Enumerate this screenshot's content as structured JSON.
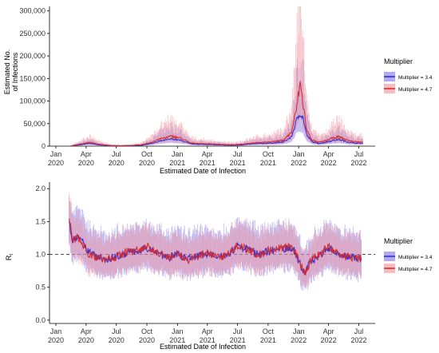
{
  "colors": {
    "series1": "#2b2bd9",
    "series2": "#d62728",
    "ribbon1": "#7b6ee6",
    "ribbon2": "#f0909a",
    "refline": "#333333"
  },
  "chart_data": [
    {
      "type": "line",
      "ylabel_lines": [
        "Estimated No.",
        "of Infections"
      ],
      "xlabel": "Estimated Date of Infection",
      "yticks": [
        0,
        50000,
        100000,
        150000,
        200000,
        250000,
        300000
      ],
      "ytick_labels": [
        "0",
        "50,000",
        "100,000",
        "150,000",
        "200,000",
        "250,000",
        "300,000"
      ],
      "ylim": [
        0,
        310000
      ],
      "xlim": [
        "2020-01-01",
        "2022-07-31"
      ],
      "xticks": [
        "2020-01",
        "2020-04",
        "2020-07",
        "2020-10",
        "2021-01",
        "2021-04",
        "2021-07",
        "2021-10",
        "2022-01",
        "2022-04",
        "2022-07"
      ],
      "xtick_labels": [
        [
          "Jan",
          "2020"
        ],
        [
          "Apr",
          "2020"
        ],
        [
          "Jul",
          "2020"
        ],
        [
          "Oct",
          "2020"
        ],
        [
          "Jan",
          "2021"
        ],
        [
          "Apr",
          "2021"
        ],
        [
          "Jul",
          "2021"
        ],
        [
          "Oct",
          "2021"
        ],
        [
          "Jan",
          "2022"
        ],
        [
          "Apr",
          "2022"
        ],
        [
          "Jul",
          "2022"
        ]
      ],
      "legend": {
        "title": "Multiplier",
        "position": "right"
      },
      "series": [
        {
          "name": "Multiplier = 3.4",
          "x": [
            "2020-02-15",
            "2020-03-15",
            "2020-04-10",
            "2020-05-15",
            "2020-06-15",
            "2020-07-15",
            "2020-08-15",
            "2020-09-15",
            "2020-10-15",
            "2020-11-15",
            "2020-12-15",
            "2021-01-10",
            "2021-02-10",
            "2021-03-15",
            "2021-04-15",
            "2021-05-15",
            "2021-06-15",
            "2021-07-15",
            "2021-08-15",
            "2021-09-15",
            "2021-10-15",
            "2021-11-15",
            "2021-12-10",
            "2021-12-25",
            "2022-01-05",
            "2022-01-15",
            "2022-01-25",
            "2022-02-10",
            "2022-03-01",
            "2022-03-20",
            "2022-04-10",
            "2022-05-01",
            "2022-05-25",
            "2022-06-15",
            "2022-07-15"
          ],
          "y": [
            500,
            3000,
            6000,
            2500,
            1000,
            700,
            1000,
            2000,
            6000,
            12000,
            16000,
            13000,
            5000,
            4000,
            3500,
            2500,
            2000,
            3000,
            5000,
            6000,
            7000,
            9000,
            20000,
            55000,
            75000,
            60000,
            25000,
            10000,
            6000,
            8000,
            12000,
            15000,
            10000,
            7000,
            6000
          ],
          "lower": [
            200,
            1500,
            3000,
            1200,
            500,
            350,
            500,
            1000,
            3000,
            6000,
            8000,
            6500,
            2500,
            2000,
            1700,
            1200,
            1000,
            1500,
            2500,
            3000,
            3500,
            4500,
            10000,
            30000,
            40000,
            30000,
            12000,
            5000,
            3000,
            4000,
            6000,
            7500,
            5000,
            3500,
            3000
          ],
          "upper": [
            1000,
            6000,
            12000,
            5000,
            2000,
            1400,
            2000,
            4000,
            12000,
            24000,
            32000,
            26000,
            10000,
            8000,
            7000,
            5000,
            4000,
            6000,
            10000,
            12000,
            14000,
            18000,
            40000,
            110000,
            150000,
            120000,
            50000,
            20000,
            12000,
            16000,
            24000,
            30000,
            20000,
            14000,
            12000
          ]
        },
        {
          "name": "Multiplier = 4.7",
          "x": [
            "2020-02-15",
            "2020-03-15",
            "2020-04-10",
            "2020-05-15",
            "2020-06-15",
            "2020-07-15",
            "2020-08-15",
            "2020-09-15",
            "2020-10-15",
            "2020-11-15",
            "2020-12-15",
            "2021-01-10",
            "2021-02-10",
            "2021-03-15",
            "2021-04-15",
            "2021-05-15",
            "2021-06-15",
            "2021-07-15",
            "2021-08-15",
            "2021-09-15",
            "2021-10-15",
            "2021-11-15",
            "2021-12-10",
            "2021-12-25",
            "2022-01-05",
            "2022-01-15",
            "2022-01-25",
            "2022-02-10",
            "2022-03-01",
            "2022-03-20",
            "2022-04-10",
            "2022-05-01",
            "2022-05-25",
            "2022-06-15",
            "2022-07-15"
          ],
          "y": [
            700,
            4500,
            8500,
            3500,
            1400,
            1000,
            1500,
            3000,
            9000,
            17000,
            22000,
            18000,
            7000,
            5500,
            5000,
            3500,
            3000,
            4500,
            7000,
            8500,
            10000,
            13000,
            30000,
            80000,
            140000,
            90000,
            35000,
            14000,
            8500,
            11000,
            17000,
            21000,
            14000,
            10000,
            8500
          ],
          "lower": [
            300,
            2200,
            4200,
            1700,
            700,
            500,
            700,
            1500,
            4500,
            8500,
            11000,
            9000,
            3500,
            2700,
            2500,
            1700,
            1500,
            2200,
            3500,
            4200,
            5000,
            6500,
            15000,
            45000,
            70000,
            45000,
            17000,
            7000,
            4200,
            5500,
            8500,
            10500,
            7000,
            5000,
            4200
          ],
          "upper": [
            1500,
            9000,
            17000,
            7000,
            2800,
            2000,
            3000,
            6000,
            18000,
            34000,
            44000,
            36000,
            14000,
            11000,
            10000,
            7000,
            6000,
            9000,
            14000,
            17000,
            20000,
            26000,
            60000,
            160000,
            260000,
            180000,
            70000,
            28000,
            17000,
            22000,
            34000,
            42000,
            28000,
            20000,
            17000
          ]
        }
      ]
    },
    {
      "type": "line",
      "ylabel": "R",
      "ylabel_sub": "t",
      "xlabel": "Estimated Date of Infection",
      "yticks": [
        0.0,
        0.5,
        1.0,
        1.5,
        2.0
      ],
      "ytick_labels": [
        "0.0",
        "0.5",
        "1.0",
        "1.5",
        "2.0"
      ],
      "ylim": [
        -0.05,
        2.1
      ],
      "reference_line": 1.0,
      "xlim": [
        "2020-01-01",
        "2022-07-31"
      ],
      "xticks": [
        "2020-01",
        "2020-04",
        "2020-07",
        "2020-10",
        "2021-01",
        "2021-04",
        "2021-07",
        "2021-10",
        "2022-01",
        "2022-04",
        "2022-07"
      ],
      "xtick_labels": [
        [
          "Jan",
          "2020"
        ],
        [
          "Apr",
          "2020"
        ],
        [
          "Jul",
          "2020"
        ],
        [
          "Oct",
          "2020"
        ],
        [
          "Jan",
          "2021"
        ],
        [
          "Apr",
          "2021"
        ],
        [
          "Jul",
          "2021"
        ],
        [
          "Oct",
          "2021"
        ],
        [
          "Jan",
          "2022"
        ],
        [
          "Apr",
          "2022"
        ],
        [
          "Jul",
          "2022"
        ]
      ],
      "legend": {
        "title": "Multiplier",
        "position": "right"
      },
      "series": [
        {
          "name": "Multiplier = 3.4",
          "x": [
            "2020-02-10",
            "2020-02-20",
            "2020-03-05",
            "2020-03-20",
            "2020-04-05",
            "2020-04-20",
            "2020-05-10",
            "2020-06-01",
            "2020-07-01",
            "2020-08-01",
            "2020-09-01",
            "2020-10-01",
            "2020-11-01",
            "2020-12-01",
            "2021-01-01",
            "2021-02-01",
            "2021-03-01",
            "2021-04-01",
            "2021-05-01",
            "2021-06-01",
            "2021-07-01",
            "2021-08-01",
            "2021-09-01",
            "2021-10-01",
            "2021-11-01",
            "2021-12-01",
            "2021-12-20",
            "2022-01-05",
            "2022-01-20",
            "2022-02-05",
            "2022-03-01",
            "2022-04-01",
            "2022-05-01",
            "2022-06-01",
            "2022-07-10"
          ],
          "y": [
            1.5,
            1.2,
            1.25,
            1.2,
            1.05,
            1.0,
            0.95,
            0.93,
            0.97,
            1.02,
            1.05,
            1.1,
            1.05,
            0.95,
            1.0,
            0.93,
            0.97,
            1.02,
            0.95,
            1.0,
            1.12,
            1.08,
            1.0,
            1.05,
            1.08,
            1.1,
            1.05,
            0.85,
            0.72,
            0.88,
            0.98,
            1.1,
            1.0,
            0.97,
            0.95
          ],
          "lower": [
            1.2,
            0.95,
            1.0,
            0.95,
            0.82,
            0.78,
            0.74,
            0.72,
            0.75,
            0.8,
            0.83,
            0.87,
            0.82,
            0.73,
            0.78,
            0.72,
            0.75,
            0.8,
            0.73,
            0.78,
            0.88,
            0.85,
            0.78,
            0.82,
            0.85,
            0.87,
            0.82,
            0.64,
            0.52,
            0.66,
            0.76,
            0.86,
            0.78,
            0.75,
            0.72
          ],
          "upper": [
            1.8,
            1.55,
            1.6,
            1.5,
            1.35,
            1.28,
            1.22,
            1.2,
            1.25,
            1.3,
            1.32,
            1.38,
            1.32,
            1.22,
            1.28,
            1.2,
            1.24,
            1.3,
            1.22,
            1.28,
            1.4,
            1.36,
            1.28,
            1.32,
            1.36,
            1.38,
            1.32,
            1.1,
            0.95,
            1.15,
            1.25,
            1.38,
            1.28,
            1.24,
            1.22
          ]
        },
        {
          "name": "Multiplier = 4.7",
          "x": [
            "2020-02-10",
            "2020-02-20",
            "2020-03-05",
            "2020-03-20",
            "2020-04-05",
            "2020-04-20",
            "2020-05-10",
            "2020-06-01",
            "2020-07-01",
            "2020-08-01",
            "2020-09-01",
            "2020-10-01",
            "2020-11-01",
            "2020-12-01",
            "2021-01-01",
            "2021-02-01",
            "2021-03-01",
            "2021-04-01",
            "2021-05-01",
            "2021-06-01",
            "2021-07-01",
            "2021-08-01",
            "2021-09-01",
            "2021-10-01",
            "2021-11-01",
            "2021-12-01",
            "2021-12-20",
            "2022-01-05",
            "2022-01-20",
            "2022-02-05",
            "2022-03-01",
            "2022-04-01",
            "2022-05-01",
            "2022-06-01",
            "2022-07-10"
          ],
          "y": [
            1.55,
            1.22,
            1.27,
            1.18,
            1.03,
            0.98,
            0.94,
            0.92,
            0.96,
            1.03,
            1.06,
            1.12,
            1.04,
            0.94,
            1.01,
            0.92,
            0.96,
            1.03,
            0.94,
            1.01,
            1.13,
            1.07,
            0.99,
            1.06,
            1.09,
            1.12,
            1.06,
            0.86,
            0.7,
            0.9,
            0.99,
            1.12,
            1.01,
            0.96,
            0.94
          ],
          "lower": [
            1.25,
            1.0,
            1.02,
            0.95,
            0.83,
            0.78,
            0.75,
            0.73,
            0.76,
            0.82,
            0.85,
            0.9,
            0.83,
            0.74,
            0.8,
            0.73,
            0.76,
            0.82,
            0.74,
            0.8,
            0.9,
            0.85,
            0.78,
            0.84,
            0.87,
            0.9,
            0.84,
            0.68,
            0.54,
            0.7,
            0.78,
            0.9,
            0.8,
            0.76,
            0.74
          ],
          "upper": [
            1.85,
            1.45,
            1.52,
            1.42,
            1.25,
            1.18,
            1.13,
            1.12,
            1.16,
            1.24,
            1.27,
            1.34,
            1.25,
            1.14,
            1.22,
            1.12,
            1.16,
            1.24,
            1.14,
            1.22,
            1.36,
            1.29,
            1.2,
            1.28,
            1.31,
            1.34,
            1.28,
            1.05,
            0.88,
            1.1,
            1.2,
            1.34,
            1.22,
            1.16,
            1.14
          ]
        }
      ]
    }
  ]
}
